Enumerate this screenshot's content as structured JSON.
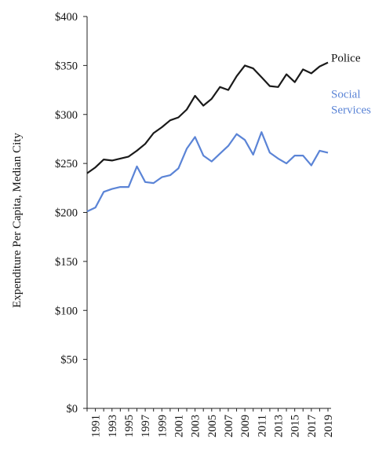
{
  "chart_data": {
    "type": "line",
    "title": "",
    "xlabel": "",
    "ylabel": "Expenditure Per Capita, Median City",
    "ylim": [
      0,
      400
    ],
    "yticks": [
      0,
      50,
      100,
      150,
      200,
      250,
      300,
      350,
      400
    ],
    "ytick_labels": [
      "$0",
      "$50",
      "$100",
      "$150",
      "$200",
      "$250",
      "$300",
      "$350",
      "$400"
    ],
    "xlim": [
      1990,
      2019
    ],
    "xticks": [
      1991,
      1993,
      1995,
      1997,
      1999,
      2001,
      2003,
      2005,
      2007,
      2009,
      2011,
      2013,
      2015,
      2017,
      2019
    ],
    "xtick_labels": [
      "1991",
      "1993",
      "1995",
      "1997",
      "1999",
      "2001",
      "2003",
      "2005",
      "2007",
      "2009",
      "2011",
      "2013",
      "2015",
      "2017",
      "2019"
    ],
    "x": [
      1990,
      1991,
      1992,
      1993,
      1994,
      1995,
      1996,
      1997,
      1998,
      1999,
      2000,
      2001,
      2002,
      2003,
      2004,
      2005,
      2006,
      2007,
      2008,
      2009,
      2010,
      2011,
      2012,
      2013,
      2014,
      2015,
      2016,
      2017,
      2018,
      2019
    ],
    "grid": false,
    "legend": "inline-right",
    "series": [
      {
        "name": "Police",
        "label_lines": [
          "Police"
        ],
        "color": "#1a1a1a",
        "values": [
          240,
          246,
          254,
          253,
          255,
          257,
          263,
          270,
          281,
          287,
          294,
          297,
          305,
          319,
          309,
          316,
          328,
          325,
          339,
          350,
          347,
          338,
          329,
          328,
          341,
          333,
          346,
          342,
          349,
          353
        ]
      },
      {
        "name": "Social Services",
        "label_lines": [
          "Social",
          "Services"
        ],
        "color": "#5b84d6",
        "values": [
          201,
          205,
          221,
          224,
          226,
          226,
          247,
          231,
          230,
          236,
          238,
          245,
          265,
          277,
          258,
          252,
          260,
          268,
          280,
          274,
          259,
          282,
          261,
          255,
          250,
          258,
          258,
          248,
          263,
          261
        ]
      }
    ]
  }
}
